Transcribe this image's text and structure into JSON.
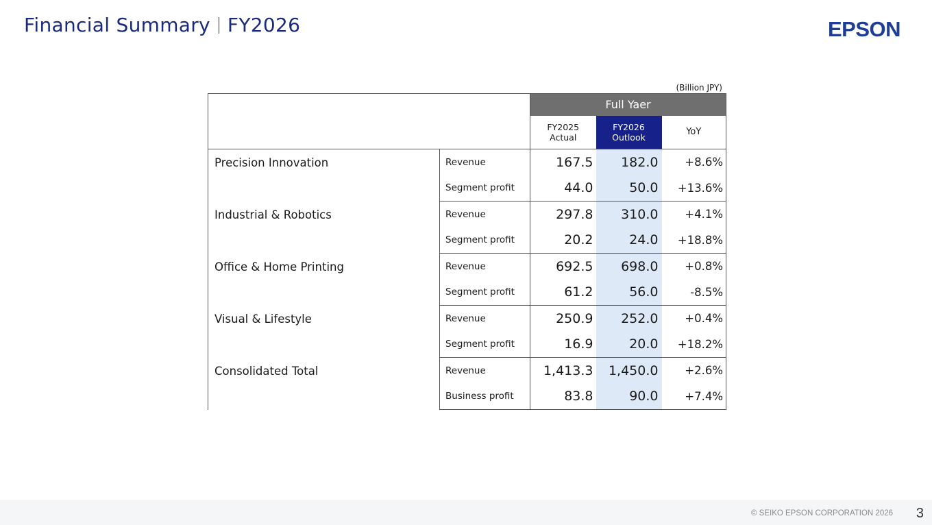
{
  "header": {
    "title_left": "Financial Summary",
    "title_right": "FY2026",
    "logo_text": "EPSON"
  },
  "table": {
    "unit": "(Billion JPY)",
    "period_header": "Full Yaer",
    "col_actual_line1": "FY2025",
    "col_actual_line2": "Actual",
    "col_outlook_line1": "FY2026",
    "col_outlook_line2": "Outlook",
    "col_yoy": "YoY",
    "segments": [
      {
        "name": "Precision Innovation",
        "rows": [
          {
            "metric": "Revenue",
            "actual": "167.5",
            "outlook": "182.0",
            "yoy": "+8.6%"
          },
          {
            "metric": "Segment profit",
            "actual": "44.0",
            "outlook": "50.0",
            "yoy": "+13.6%"
          }
        ]
      },
      {
        "name": "Industrial & Robotics",
        "rows": [
          {
            "metric": "Revenue",
            "actual": "297.8",
            "outlook": "310.0",
            "yoy": "+4.1%"
          },
          {
            "metric": "Segment profit",
            "actual": "20.2",
            "outlook": "24.0",
            "yoy": "+18.8%"
          }
        ]
      },
      {
        "name": "Office & Home Printing",
        "rows": [
          {
            "metric": "Revenue",
            "actual": "692.5",
            "outlook": "698.0",
            "yoy": "+0.8%"
          },
          {
            "metric": "Segment profit",
            "actual": "61.2",
            "outlook": "56.0",
            "yoy": "-8.5%"
          }
        ]
      },
      {
        "name": "Visual & Lifestyle",
        "rows": [
          {
            "metric": "Revenue",
            "actual": "250.9",
            "outlook": "252.0",
            "yoy": "+0.4%"
          },
          {
            "metric": "Segment profit",
            "actual": "16.9",
            "outlook": "20.0",
            "yoy": "+18.2%"
          }
        ]
      },
      {
        "name": "Consolidated Total",
        "rows": [
          {
            "metric": "Revenue",
            "actual": "1,413.3",
            "outlook": "1,450.0",
            "yoy": "+2.6%"
          },
          {
            "metric": "Business profit",
            "actual": "83.8",
            "outlook": "90.0",
            "yoy": "+7.4%"
          }
        ]
      }
    ]
  },
  "footer": {
    "copyright": "© SEIKO EPSON CORPORATION 2026",
    "page_number": "3"
  }
}
